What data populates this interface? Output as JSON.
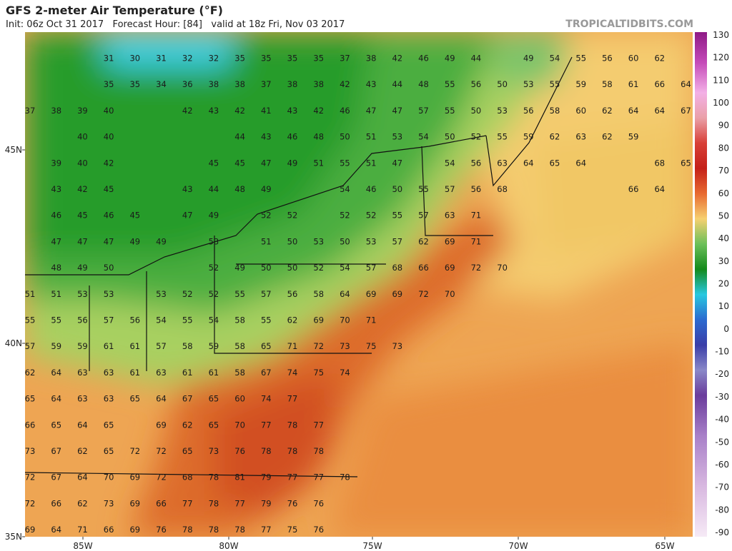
{
  "header": {
    "title": "GFS 2-meter Air Temperature (°F)",
    "subtitle": "Init: 06z Oct 31 2017   Forecast Hour: [84]   valid at 18z Fri, Nov 03 2017",
    "site": "TROPICALTIDBITS.COM"
  },
  "map": {
    "lat_labels": [
      "45N",
      "40N",
      "35N"
    ],
    "lon_labels": [
      "85W",
      "80W",
      "75W",
      "70W",
      "65W"
    ],
    "rows": [
      [
        null,
        null,
        null,
        31,
        30,
        31,
        32,
        32,
        35,
        35,
        35,
        35,
        37,
        38,
        42,
        46,
        49,
        44,
        null,
        49,
        54,
        55,
        56,
        60,
        62,
        null
      ],
      [
        null,
        null,
        null,
        35,
        35,
        34,
        36,
        38,
        38,
        37,
        38,
        38,
        42,
        43,
        44,
        48,
        55,
        56,
        50,
        53,
        55,
        59,
        58,
        61,
        66,
        64
      ],
      [
        37,
        38,
        39,
        40,
        null,
        null,
        42,
        43,
        42,
        41,
        43,
        42,
        46,
        47,
        47,
        57,
        55,
        50,
        53,
        56,
        58,
        60,
        62,
        64,
        64,
        67
      ],
      [
        null,
        null,
        40,
        40,
        null,
        null,
        null,
        null,
        44,
        43,
        46,
        48,
        50,
        51,
        53,
        54,
        50,
        52,
        55,
        59,
        62,
        63,
        62,
        59,
        null,
        null
      ],
      [
        null,
        39,
        40,
        42,
        null,
        null,
        null,
        45,
        45,
        47,
        49,
        51,
        55,
        51,
        47,
        null,
        54,
        56,
        63,
        64,
        65,
        64,
        null,
        null,
        68,
        65
      ],
      [
        null,
        43,
        42,
        45,
        null,
        null,
        43,
        44,
        48,
        49,
        null,
        null,
        54,
        46,
        50,
        55,
        57,
        56,
        68,
        null,
        null,
        null,
        null,
        66,
        64,
        null
      ],
      [
        null,
        46,
        45,
        46,
        45,
        null,
        47,
        49,
        null,
        52,
        52,
        null,
        52,
        52,
        55,
        57,
        63,
        71,
        null,
        null,
        null,
        null,
        null,
        null,
        null,
        null
      ],
      [
        null,
        47,
        47,
        47,
        49,
        49,
        null,
        53,
        null,
        51,
        50,
        53,
        50,
        53,
        57,
        62,
        69,
        71,
        null,
        null,
        null,
        null,
        null,
        null,
        null,
        null
      ],
      [
        null,
        48,
        49,
        50,
        null,
        null,
        null,
        52,
        49,
        50,
        50,
        52,
        54,
        57,
        68,
        66,
        69,
        72,
        70,
        null,
        null,
        null,
        null,
        null,
        null,
        null
      ],
      [
        51,
        51,
        53,
        53,
        null,
        53,
        52,
        52,
        55,
        57,
        56,
        58,
        64,
        69,
        69,
        72,
        70,
        null,
        null,
        null,
        null,
        null,
        null,
        null,
        null,
        null
      ],
      [
        55,
        55,
        56,
        57,
        56,
        54,
        55,
        54,
        58,
        55,
        62,
        69,
        70,
        71,
        null,
        null,
        null,
        null,
        null,
        null,
        null,
        null,
        null,
        null,
        null,
        null
      ],
      [
        57,
        59,
        59,
        61,
        61,
        57,
        58,
        59,
        58,
        65,
        71,
        72,
        73,
        75,
        73,
        null,
        null,
        null,
        null,
        null,
        null,
        null,
        null,
        null,
        null,
        null
      ],
      [
        62,
        64,
        63,
        63,
        61,
        63,
        61,
        61,
        58,
        67,
        74,
        75,
        74,
        null,
        null,
        null,
        null,
        null,
        null,
        null,
        null,
        null,
        null,
        null,
        null,
        null
      ],
      [
        65,
        64,
        63,
        63,
        65,
        64,
        67,
        65,
        60,
        74,
        77,
        null,
        null,
        null,
        null,
        null,
        null,
        null,
        null,
        null,
        null,
        null,
        null,
        null,
        null,
        null
      ],
      [
        66,
        65,
        64,
        65,
        null,
        69,
        62,
        65,
        70,
        77,
        78,
        77,
        null,
        null,
        null,
        null,
        null,
        null,
        null,
        null,
        null,
        null,
        null,
        null,
        null,
        null
      ],
      [
        73,
        67,
        62,
        65,
        72,
        72,
        65,
        73,
        76,
        78,
        78,
        78,
        null,
        null,
        null,
        null,
        null,
        null,
        null,
        null,
        null,
        null,
        null,
        null,
        null,
        null
      ],
      [
        72,
        67,
        64,
        70,
        69,
        72,
        68,
        78,
        81,
        79,
        77,
        77,
        78,
        null,
        null,
        null,
        null,
        null,
        null,
        null,
        null,
        null,
        null,
        null,
        null,
        null
      ],
      [
        72,
        66,
        62,
        73,
        69,
        66,
        77,
        78,
        77,
        79,
        76,
        76,
        null,
        null,
        null,
        null,
        null,
        null,
        null,
        null,
        null,
        null,
        null,
        null,
        null,
        null
      ],
      [
        69,
        64,
        71,
        66,
        69,
        76,
        78,
        78,
        78,
        77,
        75,
        76,
        null,
        null,
        null,
        null,
        null,
        null,
        null,
        null,
        null,
        null,
        null,
        null,
        null,
        null
      ]
    ]
  },
  "colorbar": {
    "ticks": [
      130,
      120,
      110,
      100,
      90,
      80,
      70,
      60,
      50,
      40,
      30,
      20,
      10,
      0,
      -10,
      -20,
      -30,
      -40,
      -50,
      -60,
      -70,
      -80,
      -90
    ]
  }
}
